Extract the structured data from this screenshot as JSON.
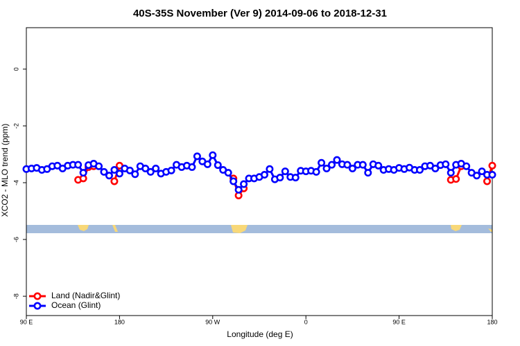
{
  "chart_data": {
    "type": "line",
    "title": "40S-35S November (Ver 9)   2014-09-06 to 2018-12-31",
    "xlabel": "Longitude (deg E)",
    "ylabel": "XCO2 - MLO trend (ppm)",
    "xlim": [
      90,
      540
    ],
    "ylim": [
      -8.68,
      1.46
    ],
    "xticks": [
      {
        "value": 90,
        "label": "90 E"
      },
      180,
      {
        "value": 270,
        "label": "90 W"
      },
      {
        "value": 360,
        "label": "0"
      },
      {
        "value": 450,
        "label": "90 E"
      },
      {
        "value": 540,
        "label": "180"
      }
    ],
    "yticks": [
      0,
      -2,
      -4,
      -6,
      -8
    ],
    "legend": "bottom-left",
    "series": [
      {
        "name": "Land (Nadir&Glint)",
        "color": "#ff0000",
        "x": [
          140,
          145,
          150,
          155,
          null,
          175,
          180,
          null,
          290,
          295,
          300,
          null,
          500,
          505,
          510,
          null,
          535,
          540
        ],
        "values": [
          -3.9,
          -3.85,
          -3.45,
          -3.42,
          null,
          -3.95,
          -3.4,
          null,
          -3.85,
          -4.45,
          -4.2,
          null,
          -3.9,
          -3.87,
          -3.42,
          null,
          -3.95,
          -3.4
        ]
      },
      {
        "name": "Ocean (Glint)",
        "color": "#0000ff",
        "x": [
          90,
          95,
          100,
          105,
          110,
          115,
          120,
          125,
          130,
          135,
          140,
          145,
          150,
          155,
          160,
          165,
          170,
          175,
          180,
          185,
          190,
          195,
          200,
          205,
          210,
          215,
          220,
          225,
          230,
          235,
          240,
          245,
          250,
          255,
          260,
          265,
          270,
          275,
          280,
          285,
          290,
          295,
          300,
          305,
          310,
          315,
          320,
          325,
          330,
          335,
          340,
          345,
          350,
          355,
          360,
          365,
          370,
          375,
          380,
          385,
          390,
          395,
          400,
          405,
          410,
          415,
          420,
          425,
          430,
          435,
          440,
          445,
          450,
          455,
          460,
          465,
          470,
          475,
          480,
          485,
          490,
          495,
          500,
          505,
          510,
          515,
          520,
          525,
          530,
          535,
          540
        ],
        "values": [
          -3.52,
          -3.5,
          -3.48,
          -3.55,
          -3.52,
          -3.42,
          -3.4,
          -3.5,
          -3.4,
          -3.37,
          -3.37,
          -3.65,
          -3.38,
          -3.33,
          -3.42,
          -3.62,
          -3.75,
          -3.55,
          -3.68,
          -3.5,
          -3.57,
          -3.7,
          -3.42,
          -3.5,
          -3.62,
          -3.5,
          -3.68,
          -3.62,
          -3.57,
          -3.37,
          -3.45,
          -3.4,
          -3.45,
          -3.07,
          -3.25,
          -3.35,
          -3.03,
          -3.38,
          -3.55,
          -3.65,
          -3.95,
          -4.25,
          -4.05,
          -3.85,
          -3.85,
          -3.8,
          -3.72,
          -3.52,
          -3.88,
          -3.82,
          -3.6,
          -3.8,
          -3.82,
          -3.58,
          -3.6,
          -3.58,
          -3.62,
          -3.3,
          -3.5,
          -3.37,
          -3.2,
          -3.35,
          -3.37,
          -3.5,
          -3.37,
          -3.37,
          -3.65,
          -3.35,
          -3.4,
          -3.55,
          -3.52,
          -3.55,
          -3.48,
          -3.52,
          -3.47,
          -3.55,
          -3.55,
          -3.42,
          -3.4,
          -3.5,
          -3.38,
          -3.35,
          -3.65,
          -3.37,
          -3.33,
          -3.42,
          -3.65,
          -3.75,
          -3.6,
          -3.72,
          -3.72
        ]
      }
    ]
  }
}
